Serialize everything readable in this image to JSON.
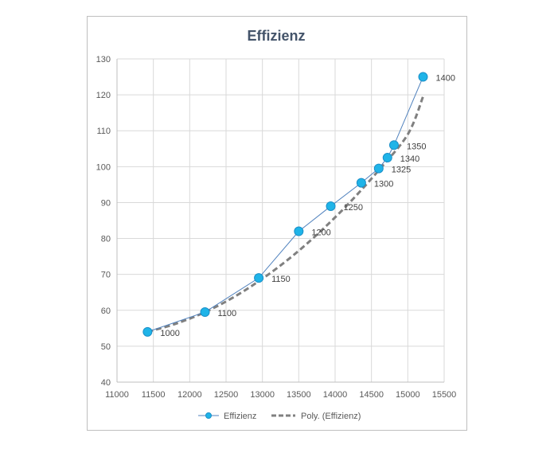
{
  "chart_data": {
    "type": "scatter",
    "title": "Effizienz",
    "xlabel": "",
    "ylabel": "",
    "xlim": [
      11000,
      15500
    ],
    "ylim": [
      40,
      130
    ],
    "xticks": [
      11000,
      11500,
      12000,
      12500,
      13000,
      13500,
      14000,
      14500,
      15000,
      15500
    ],
    "yticks": [
      40,
      50,
      60,
      70,
      80,
      90,
      100,
      110,
      120,
      130
    ],
    "grid": true,
    "legend_position": "bottom",
    "series": [
      {
        "name": "Effizienz",
        "style": "line-with-markers",
        "color": "#4f81bd",
        "marker_color": "#1fb4e8",
        "points": [
          {
            "x": 11420,
            "y": 54,
            "label": "1000"
          },
          {
            "x": 12210,
            "y": 59.5,
            "label": "1100"
          },
          {
            "x": 12950,
            "y": 69,
            "label": "1150"
          },
          {
            "x": 13500,
            "y": 82,
            "label": "1200"
          },
          {
            "x": 13940,
            "y": 89,
            "label": "1250"
          },
          {
            "x": 14360,
            "y": 95.5,
            "label": "1300"
          },
          {
            "x": 14600,
            "y": 99.5,
            "label": "1325"
          },
          {
            "x": 14720,
            "y": 102.5,
            "label": "1340"
          },
          {
            "x": 14810,
            "y": 106,
            "label": "1350"
          },
          {
            "x": 15210,
            "y": 125,
            "label": "1400"
          }
        ]
      },
      {
        "name": "Poly. (Effizienz)",
        "style": "dashed-trendline",
        "color": "#808080",
        "points": [
          {
            "x": 11420,
            "y": 54
          },
          {
            "x": 11800,
            "y": 56.2
          },
          {
            "x": 12200,
            "y": 59.4
          },
          {
            "x": 12600,
            "y": 63.6
          },
          {
            "x": 13000,
            "y": 68.8
          },
          {
            "x": 13400,
            "y": 74.9
          },
          {
            "x": 13800,
            "y": 82
          },
          {
            "x": 14200,
            "y": 90
          },
          {
            "x": 14600,
            "y": 99
          },
          {
            "x": 15000,
            "y": 109
          },
          {
            "x": 15210,
            "y": 119.5
          }
        ]
      }
    ]
  }
}
